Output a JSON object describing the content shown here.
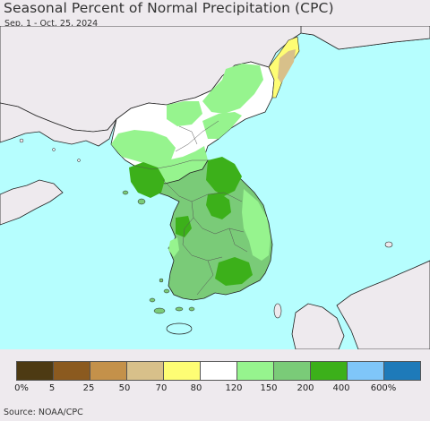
{
  "title": "Seasonal Percent of Normal Precipitation (CPC)",
  "subtitle": "Sep. 1 - Oct. 25, 2024",
  "source": "Source: NOAA/CPC",
  "legend": {
    "colors": [
      "#4d3a13",
      "#8b5a1f",
      "#c4914a",
      "#d8c08a",
      "#fefd74",
      "#ffffff",
      "#96f48e",
      "#7acb78",
      "#3cb01a",
      "#7fc6f9",
      "#1e7ab9"
    ],
    "labels": [
      "0%",
      "5",
      "25",
      "50",
      "70",
      "80",
      "120",
      "150",
      "200",
      "400",
      "600%"
    ]
  },
  "map": {
    "ocean_color": "#b6fefe",
    "land_color": "#eeeaee"
  }
}
